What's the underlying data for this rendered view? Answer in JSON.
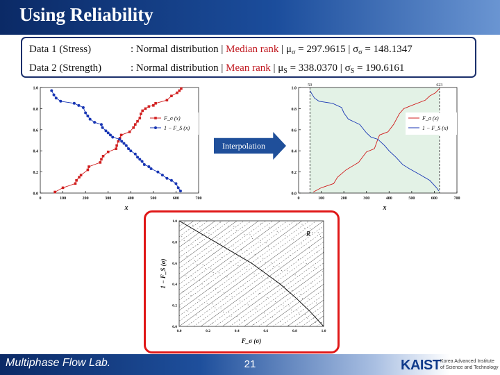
{
  "slide": {
    "title": "Using Reliability",
    "interpolation_label": "Interpolation",
    "footer_lab": "Multiphase Flow Lab.",
    "page_number": "21",
    "logo_text": "KAIST",
    "logo_subtext": "Korea Advanced Institute of Science and Technology"
  },
  "info": {
    "row1": {
      "label": "Data 1 (Stress)",
      "dist": ": Normal distribution | ",
      "rank": "Median rank",
      "mu_sym": "μ",
      "mu_sub": "σ",
      "mu_val": " = 297.9615 | ",
      "sd_sym": "σ",
      "sd_sub": "σ",
      "sd_val": " = 148.1347"
    },
    "row2": {
      "label": "Data 2 (Strength)",
      "dist": ": Normal distribution | ",
      "rank": "Mean rank",
      "mu_sym": "  | μ",
      "mu_sub": "S",
      "mu_val": " = 338.0370 | ",
      "sd_sym": "σ",
      "sd_sub": "S",
      "sd_val": " =  190.6161"
    }
  },
  "chart_data": [
    {
      "type": "line",
      "xlabel": "x",
      "xlim": [
        0,
        700
      ],
      "ylim": [
        0,
        1
      ],
      "xticks": [
        "0",
        "100",
        "200",
        "300",
        "400",
        "500",
        "600",
        "700"
      ],
      "yticks": [
        "0.0",
        "0.2",
        "0.4",
        "0.6",
        "0.8",
        "1.0"
      ],
      "legend": [
        "F_σ (x)",
        "1 − F_S (x)"
      ],
      "legend_position": "right",
      "colors": [
        "#d11f1f",
        "#1836b4"
      ],
      "series": [
        {
          "name": "F_σ (x)",
          "x": [
            65,
            100,
            155,
            160,
            172,
            180,
            210,
            215,
            265,
            270,
            278,
            300,
            335,
            338,
            345,
            352,
            358,
            395,
            412,
            420,
            430,
            440,
            445,
            452,
            465,
            480,
            500,
            510,
            560,
            580,
            605,
            615,
            623
          ],
          "y": [
            0.01,
            0.05,
            0.09,
            0.12,
            0.15,
            0.17,
            0.22,
            0.25,
            0.29,
            0.32,
            0.35,
            0.39,
            0.42,
            0.45,
            0.49,
            0.52,
            0.55,
            0.58,
            0.62,
            0.65,
            0.68,
            0.71,
            0.75,
            0.78,
            0.8,
            0.82,
            0.83,
            0.85,
            0.88,
            0.92,
            0.95,
            0.97,
            0.99
          ]
        },
        {
          "name": "1 − F_S (x)",
          "x": [
            50,
            60,
            70,
            90,
            150,
            170,
            190,
            200,
            210,
            220,
            240,
            270,
            275,
            290,
            300,
            310,
            320,
            350,
            360,
            370,
            380,
            390,
            400,
            420,
            430,
            440,
            450,
            460,
            480,
            490,
            520,
            540,
            560,
            580,
            600,
            610,
            620
          ],
          "y": [
            0.97,
            0.93,
            0.9,
            0.87,
            0.85,
            0.83,
            0.81,
            0.76,
            0.73,
            0.7,
            0.67,
            0.65,
            0.62,
            0.59,
            0.57,
            0.55,
            0.53,
            0.51,
            0.49,
            0.47,
            0.45,
            0.42,
            0.4,
            0.37,
            0.34,
            0.32,
            0.3,
            0.27,
            0.25,
            0.23,
            0.2,
            0.17,
            0.14,
            0.12,
            0.09,
            0.05,
            0.02
          ]
        }
      ]
    },
    {
      "type": "line",
      "xlabel": "x",
      "xlim": [
        0,
        700
      ],
      "ylim": [
        0,
        1
      ],
      "xticks": [
        "0",
        "100",
        "200",
        "300",
        "400",
        "500",
        "600",
        "700"
      ],
      "yticks": [
        "0.0",
        "0.2",
        "0.4",
        "0.6",
        "0.8",
        "1.0"
      ],
      "top_markers": [
        {
          "x": 50,
          "label": "50"
        },
        {
          "x": 623,
          "label": "623"
        }
      ],
      "shaded_range": [
        50,
        623
      ],
      "shade_color": "#e3f2e6",
      "legend": [
        "F_σ (x)",
        "1 − F_S (x)"
      ],
      "legend_position": "right",
      "colors": [
        "#d11f1f",
        "#1836b4"
      ],
      "series": [
        {
          "name": "F_σ (x)",
          "x": [
            65,
            100,
            155,
            172,
            210,
            265,
            300,
            335,
            352,
            358,
            395,
            420,
            445,
            465,
            500,
            560,
            580,
            605,
            623
          ],
          "y": [
            0.01,
            0.05,
            0.09,
            0.15,
            0.22,
            0.29,
            0.39,
            0.42,
            0.52,
            0.55,
            0.58,
            0.65,
            0.75,
            0.8,
            0.83,
            0.88,
            0.92,
            0.95,
            0.99
          ]
        },
        {
          "name": "1 − F_S (x)",
          "x": [
            50,
            70,
            90,
            150,
            190,
            200,
            220,
            270,
            300,
            320,
            350,
            380,
            400,
            430,
            460,
            490,
            540,
            580,
            610,
            620
          ],
          "y": [
            0.97,
            0.9,
            0.87,
            0.85,
            0.81,
            0.76,
            0.7,
            0.65,
            0.57,
            0.53,
            0.51,
            0.45,
            0.4,
            0.34,
            0.27,
            0.23,
            0.17,
            0.12,
            0.05,
            0.02
          ]
        }
      ]
    },
    {
      "type": "area",
      "xlabel": "F_σ (σ)",
      "ylabel": "1 − F_S (σ)",
      "xlim": [
        0,
        1
      ],
      "ylim": [
        0,
        1
      ],
      "xticks": [
        "0.0",
        "0.2",
        "0.4",
        "0.6",
        "0.8",
        "1.0"
      ],
      "yticks": [
        "0.0",
        "0.2",
        "0.4",
        "0.6",
        "0.8",
        "1.0"
      ],
      "annotations": [
        "R"
      ],
      "series": [
        {
          "name": "boundary",
          "x": [
            0.0,
            0.1,
            0.2,
            0.3,
            0.4,
            0.5,
            0.6,
            0.7,
            0.8,
            0.9,
            1.0
          ],
          "y": [
            1.0,
            0.92,
            0.84,
            0.76,
            0.68,
            0.6,
            0.5,
            0.4,
            0.28,
            0.15,
            0.0
          ]
        }
      ]
    }
  ]
}
